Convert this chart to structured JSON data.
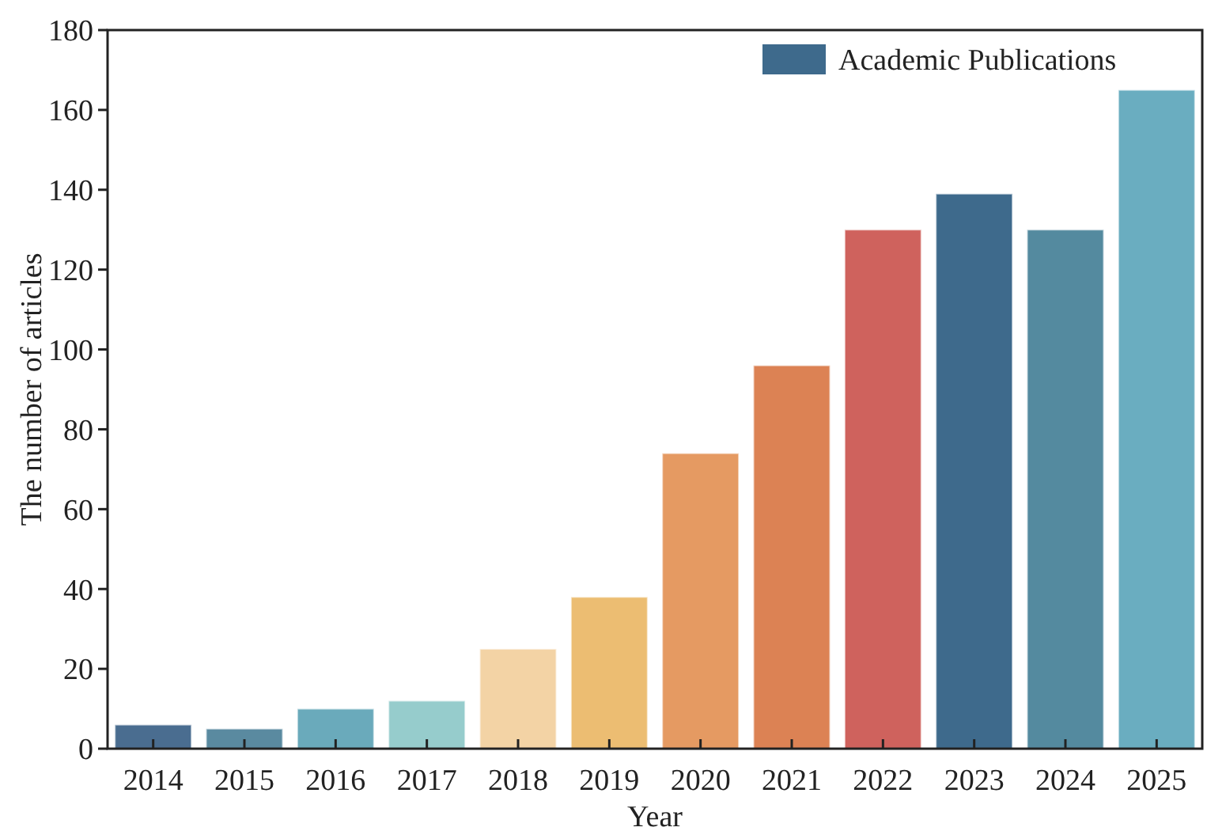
{
  "chart_data": {
    "type": "bar",
    "xlabel": "Year",
    "ylabel": "The number of articles",
    "categories": [
      "2014",
      "2015",
      "2016",
      "2017",
      "2018",
      "2019",
      "2020",
      "2021",
      "2022",
      "2023",
      "2024",
      "2025"
    ],
    "series": [
      {
        "name": "Academic Publications",
        "color": "#3e6a8c",
        "values": [
          6,
          5,
          10,
          12,
          25,
          38,
          74,
          96,
          130,
          139,
          130,
          165
        ],
        "colors": [
          "#4a6d90",
          "#5a8aa0",
          "#6aaabb",
          "#96cccc",
          "#f3d3a5",
          "#ecbd72",
          "#e59a62",
          "#dc8254",
          "#cf625d",
          "#3e6a8c",
          "#548a9f",
          "#6aadc0"
        ]
      }
    ],
    "ylim": [
      0,
      180
    ],
    "yticks": [
      0,
      20,
      40,
      60,
      80,
      100,
      120,
      140,
      160,
      180
    ],
    "legend": "top right"
  }
}
